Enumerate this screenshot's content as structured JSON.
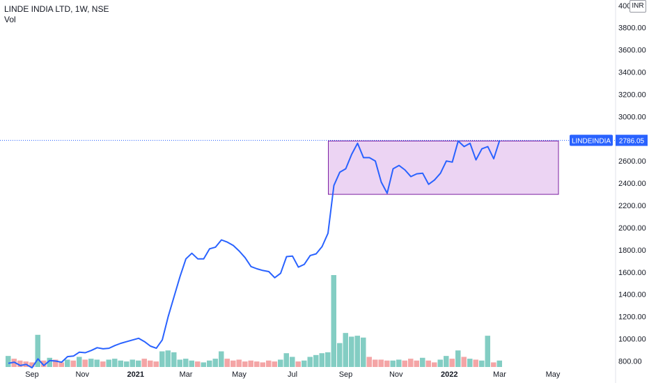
{
  "header": {
    "symbol_line": "LINDE INDIA LTD, 1W, NSE",
    "volume_label": "Vol"
  },
  "currency_badge": "INR",
  "price_label": {
    "ticker": "LINDEINDIA",
    "value": "2786.05",
    "color": "#2962ff"
  },
  "colors": {
    "line": "#2962ff",
    "vol_up": "#83cdc3",
    "vol_down": "#f4a5a6",
    "box_fill": "#e6c6ef",
    "box_stroke": "#7b1fa2"
  },
  "chart_data": {
    "type": "line",
    "title": "LINDE INDIA LTD, 1W, NSE",
    "ylim": [
      700,
      4000
    ],
    "y_ticks": [
      "4000.00",
      "3800.00",
      "3600.00",
      "3400.00",
      "3200.00",
      "3000.00",
      "2800.00",
      "2600.00",
      "2400.00",
      "2200.00",
      "2000.00",
      "1800.00",
      "1600.00",
      "1400.00",
      "1200.00",
      "1000.00",
      "800.00"
    ],
    "x_ticks": [
      {
        "label": "Sep",
        "week": 4,
        "bold": false
      },
      {
        "label": "Nov",
        "week": 12.5,
        "bold": false
      },
      {
        "label": "2021",
        "week": 21.5,
        "bold": true
      },
      {
        "label": "Mar",
        "week": 30,
        "bold": false
      },
      {
        "label": "May",
        "week": 39,
        "bold": false
      },
      {
        "label": "Jul",
        "week": 48,
        "bold": false
      },
      {
        "label": "Sep",
        "week": 57,
        "bold": false
      },
      {
        "label": "Nov",
        "week": 65.5,
        "bold": false
      },
      {
        "label": "2022",
        "week": 74.5,
        "bold": true
      },
      {
        "label": "Mar",
        "week": 83,
        "bold": false
      },
      {
        "label": "May",
        "week": 92,
        "bold": false
      }
    ],
    "series": [
      {
        "kind": "price",
        "points": [
          [
            0,
            780
          ],
          [
            1,
            790
          ],
          [
            2,
            760
          ],
          [
            3,
            770
          ],
          [
            4,
            740
          ],
          [
            5,
            820
          ],
          [
            6,
            760
          ],
          [
            7,
            805
          ],
          [
            8,
            800
          ],
          [
            9,
            790
          ],
          [
            10,
            840
          ],
          [
            11,
            845
          ],
          [
            12,
            880
          ],
          [
            13,
            875
          ],
          [
            14,
            895
          ],
          [
            15,
            920
          ],
          [
            16,
            910
          ],
          [
            17,
            915
          ],
          [
            18,
            940
          ],
          [
            19,
            960
          ],
          [
            20,
            975
          ],
          [
            21,
            990
          ],
          [
            22,
            1005
          ],
          [
            23,
            975
          ],
          [
            24,
            935
          ],
          [
            25,
            915
          ],
          [
            26,
            990
          ],
          [
            27,
            1200
          ],
          [
            28,
            1380
          ],
          [
            29,
            1560
          ],
          [
            30,
            1720
          ],
          [
            31,
            1770
          ],
          [
            32,
            1720
          ],
          [
            33,
            1720
          ],
          [
            34,
            1810
          ],
          [
            35,
            1825
          ],
          [
            36,
            1890
          ],
          [
            37,
            1870
          ],
          [
            38,
            1840
          ],
          [
            39,
            1790
          ],
          [
            40,
            1730
          ],
          [
            41,
            1650
          ],
          [
            42,
            1630
          ],
          [
            43,
            1615
          ],
          [
            44,
            1605
          ],
          [
            45,
            1550
          ],
          [
            46,
            1590
          ],
          [
            47,
            1740
          ],
          [
            48,
            1745
          ],
          [
            49,
            1645
          ],
          [
            50,
            1670
          ],
          [
            51,
            1750
          ],
          [
            52,
            1765
          ],
          [
            53,
            1830
          ],
          [
            54,
            1950
          ],
          [
            55,
            2380
          ],
          [
            56,
            2500
          ],
          [
            57,
            2530
          ],
          [
            58,
            2660
          ],
          [
            59,
            2760
          ],
          [
            60,
            2630
          ],
          [
            61,
            2630
          ],
          [
            62,
            2600
          ],
          [
            63,
            2410
          ],
          [
            64,
            2310
          ],
          [
            65,
            2530
          ],
          [
            66,
            2560
          ],
          [
            67,
            2520
          ],
          [
            68,
            2460
          ],
          [
            69,
            2485
          ],
          [
            70,
            2490
          ],
          [
            71,
            2390
          ],
          [
            72,
            2430
          ],
          [
            73,
            2490
          ],
          [
            74,
            2600
          ],
          [
            75,
            2590
          ],
          [
            76,
            2780
          ],
          [
            77,
            2730
          ],
          [
            78,
            2760
          ],
          [
            79,
            2610
          ],
          [
            80,
            2710
          ],
          [
            81,
            2730
          ],
          [
            82,
            2620
          ],
          [
            83,
            2786
          ]
        ]
      },
      {
        "kind": "volume",
        "values": [
          {
            "w": 0,
            "v": 0.12,
            "up": true
          },
          {
            "w": 1,
            "v": 0.09,
            "up": false
          },
          {
            "w": 2,
            "v": 0.07,
            "up": false
          },
          {
            "w": 3,
            "v": 0.06,
            "up": false
          },
          {
            "w": 4,
            "v": 0.05,
            "up": false
          },
          {
            "w": 5,
            "v": 0.35,
            "up": true
          },
          {
            "w": 6,
            "v": 0.07,
            "up": false
          },
          {
            "w": 7,
            "v": 0.1,
            "up": true
          },
          {
            "w": 8,
            "v": 0.08,
            "up": false
          },
          {
            "w": 9,
            "v": 0.05,
            "up": false
          },
          {
            "w": 10,
            "v": 0.08,
            "up": true
          },
          {
            "w": 11,
            "v": 0.07,
            "up": false
          },
          {
            "w": 12,
            "v": 0.11,
            "up": true
          },
          {
            "w": 13,
            "v": 0.08,
            "up": false
          },
          {
            "w": 14,
            "v": 0.09,
            "up": true
          },
          {
            "w": 15,
            "v": 0.08,
            "up": true
          },
          {
            "w": 16,
            "v": 0.06,
            "up": false
          },
          {
            "w": 17,
            "v": 0.08,
            "up": true
          },
          {
            "w": 18,
            "v": 0.09,
            "up": true
          },
          {
            "w": 19,
            "v": 0.07,
            "up": true
          },
          {
            "w": 20,
            "v": 0.06,
            "up": true
          },
          {
            "w": 21,
            "v": 0.08,
            "up": true
          },
          {
            "w": 22,
            "v": 0.07,
            "up": true
          },
          {
            "w": 23,
            "v": 0.09,
            "up": false
          },
          {
            "w": 24,
            "v": 0.07,
            "up": false
          },
          {
            "w": 25,
            "v": 0.06,
            "up": false
          },
          {
            "w": 26,
            "v": 0.17,
            "up": true
          },
          {
            "w": 27,
            "v": 0.18,
            "up": true
          },
          {
            "w": 28,
            "v": 0.16,
            "up": true
          },
          {
            "w": 29,
            "v": 0.08,
            "up": true
          },
          {
            "w": 30,
            "v": 0.09,
            "up": true
          },
          {
            "w": 31,
            "v": 0.07,
            "up": true
          },
          {
            "w": 32,
            "v": 0.06,
            "up": false
          },
          {
            "w": 33,
            "v": 0.05,
            "up": true
          },
          {
            "w": 34,
            "v": 0.07,
            "up": true
          },
          {
            "w": 35,
            "v": 0.09,
            "up": true
          },
          {
            "w": 36,
            "v": 0.17,
            "up": true
          },
          {
            "w": 37,
            "v": 0.09,
            "up": false
          },
          {
            "w": 38,
            "v": 0.07,
            "up": false
          },
          {
            "w": 39,
            "v": 0.08,
            "up": false
          },
          {
            "w": 40,
            "v": 0.06,
            "up": false
          },
          {
            "w": 41,
            "v": 0.07,
            "up": false
          },
          {
            "w": 42,
            "v": 0.06,
            "up": false
          },
          {
            "w": 43,
            "v": 0.05,
            "up": false
          },
          {
            "w": 44,
            "v": 0.07,
            "up": false
          },
          {
            "w": 45,
            "v": 0.06,
            "up": false
          },
          {
            "w": 46,
            "v": 0.08,
            "up": true
          },
          {
            "w": 47,
            "v": 0.15,
            "up": true
          },
          {
            "w": 48,
            "v": 0.11,
            "up": true
          },
          {
            "w": 49,
            "v": 0.06,
            "up": false
          },
          {
            "w": 50,
            "v": 0.07,
            "up": true
          },
          {
            "w": 51,
            "v": 0.11,
            "up": true
          },
          {
            "w": 52,
            "v": 0.13,
            "up": true
          },
          {
            "w": 53,
            "v": 0.15,
            "up": true
          },
          {
            "w": 54,
            "v": 0.16,
            "up": true
          },
          {
            "w": 55,
            "v": 1.0,
            "up": true
          },
          {
            "w": 56,
            "v": 0.26,
            "up": true
          },
          {
            "w": 57,
            "v": 0.37,
            "up": true
          },
          {
            "w": 58,
            "v": 0.33,
            "up": true
          },
          {
            "w": 59,
            "v": 0.34,
            "up": true
          },
          {
            "w": 60,
            "v": 0.32,
            "up": true
          },
          {
            "w": 61,
            "v": 0.11,
            "up": false
          },
          {
            "w": 62,
            "v": 0.08,
            "up": false
          },
          {
            "w": 63,
            "v": 0.08,
            "up": false
          },
          {
            "w": 64,
            "v": 0.07,
            "up": false
          },
          {
            "w": 65,
            "v": 0.07,
            "up": true
          },
          {
            "w": 66,
            "v": 0.08,
            "up": true
          },
          {
            "w": 67,
            "v": 0.07,
            "up": false
          },
          {
            "w": 68,
            "v": 0.09,
            "up": false
          },
          {
            "w": 69,
            "v": 0.07,
            "up": false
          },
          {
            "w": 70,
            "v": 0.1,
            "up": true
          },
          {
            "w": 71,
            "v": 0.07,
            "up": false
          },
          {
            "w": 72,
            "v": 0.05,
            "up": false
          },
          {
            "w": 73,
            "v": 0.08,
            "up": true
          },
          {
            "w": 74,
            "v": 0.12,
            "up": true
          },
          {
            "w": 75,
            "v": 0.09,
            "up": false
          },
          {
            "w": 76,
            "v": 0.18,
            "up": true
          },
          {
            "w": 77,
            "v": 0.11,
            "up": false
          },
          {
            "w": 78,
            "v": 0.09,
            "up": true
          },
          {
            "w": 79,
            "v": 0.08,
            "up": false
          },
          {
            "w": 80,
            "v": 0.07,
            "up": true
          },
          {
            "w": 81,
            "v": 0.34,
            "up": true
          },
          {
            "w": 82,
            "v": 0.05,
            "up": false
          },
          {
            "w": 83,
            "v": 0.07,
            "up": true
          }
        ]
      }
    ],
    "annotations": [
      {
        "type": "rectangle",
        "week_start": 55,
        "week_end": 94,
        "price_low": 2300,
        "price_high": 2780
      }
    ],
    "last_value": 2786.05,
    "grid": false,
    "legend": "none"
  }
}
